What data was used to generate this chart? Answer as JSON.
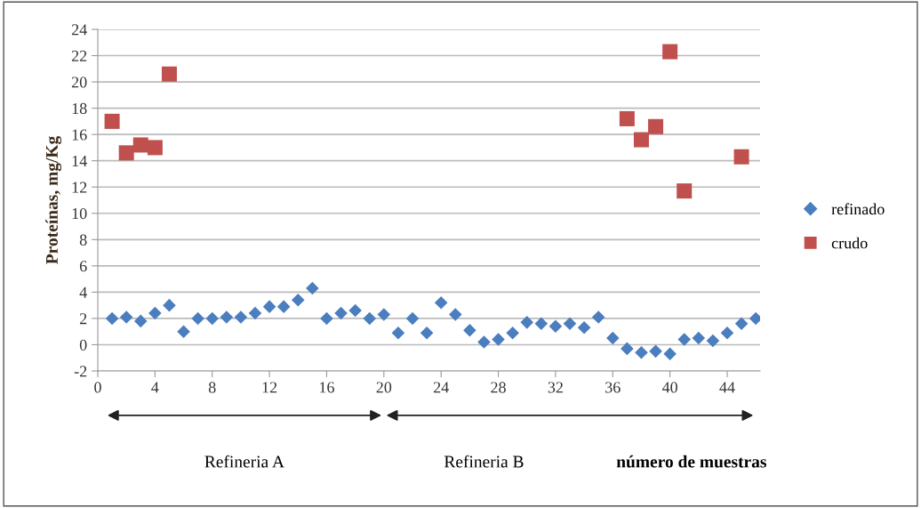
{
  "chart_data": {
    "type": "scatter",
    "xlabel": "número de muestras",
    "ylabel": "Proteínas, mg/Kg",
    "xlim": [
      0,
      46.3
    ],
    "xticks": [
      0,
      4,
      8,
      12,
      16,
      20,
      24,
      28,
      32,
      36,
      40,
      44
    ],
    "ylim": [
      -2,
      24
    ],
    "yticks": [
      -2,
      0,
      2,
      4,
      6,
      8,
      10,
      12,
      14,
      16,
      18,
      20,
      22,
      24
    ],
    "grid": "y",
    "legend": "right",
    "series": [
      {
        "name": "refinado",
        "color": "#4a7ebf",
        "marker": "diamond",
        "x": [
          1,
          2,
          3,
          4,
          5,
          6,
          7,
          8,
          9,
          10,
          11,
          12,
          13,
          14,
          15,
          16,
          17,
          18,
          19,
          20,
          21,
          22,
          23,
          24,
          25,
          26,
          27,
          28,
          29,
          30,
          31,
          32,
          33,
          34,
          35,
          36,
          37,
          38,
          39,
          40,
          41,
          42,
          43,
          44,
          45,
          46
        ],
        "values": [
          2.0,
          2.1,
          1.8,
          2.4,
          3.0,
          1.0,
          2.0,
          2.0,
          2.1,
          2.1,
          2.4,
          2.9,
          2.9,
          3.4,
          4.3,
          2.0,
          2.4,
          2.6,
          2.0,
          2.3,
          0.9,
          2.0,
          0.9,
          3.2,
          2.3,
          1.1,
          0.2,
          0.4,
          0.9,
          1.7,
          1.6,
          1.4,
          1.6,
          1.3,
          2.1,
          0.5,
          -0.3,
          -0.6,
          -0.5,
          -0.7,
          0.4,
          0.5,
          0.3,
          0.9,
          1.6,
          2.0
        ]
      },
      {
        "name": "crudo",
        "color": "#c0504d",
        "marker": "square",
        "x": [
          1,
          2,
          3,
          4,
          5,
          37,
          38,
          39,
          40,
          41,
          45
        ],
        "values": [
          17.0,
          14.6,
          15.2,
          15.0,
          20.6,
          17.2,
          15.6,
          16.6,
          22.3,
          11.7,
          14.3
        ]
      }
    ],
    "annotations": [
      "Refineria A",
      "Refineria B"
    ]
  }
}
